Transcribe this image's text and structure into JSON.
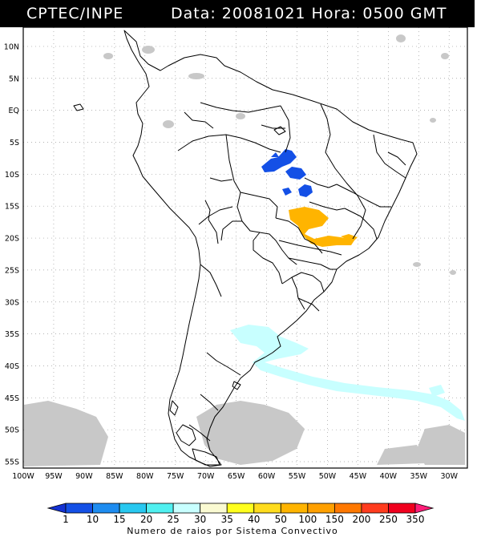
{
  "header": {
    "title": "CPTEC/INPE",
    "datetime": "Data: 20081021  Hora: 0500 GMT"
  },
  "map": {
    "lat_labels": [
      "10N",
      "5N",
      "EQ",
      "5S",
      "10S",
      "15S",
      "20S",
      "25S",
      "30S",
      "35S",
      "40S",
      "45S",
      "50S",
      "55S"
    ],
    "lon_labels": [
      "100W",
      "95W",
      "90W",
      "85W",
      "80W",
      "75W",
      "70W",
      "65W",
      "60W",
      "55W",
      "50W",
      "45W",
      "40W",
      "35W",
      "30W"
    ],
    "extent": {
      "lon_min": -100,
      "lon_max": -27,
      "lat_min": -56,
      "lat_max": 13
    },
    "grid": "dotted"
  },
  "colorbar": {
    "values": [
      "1",
      "10",
      "15",
      "20",
      "25",
      "30",
      "35",
      "40",
      "50",
      "100",
      "150",
      "200",
      "250",
      "350"
    ],
    "colors": [
      "#1432d2",
      "#1450e6",
      "#1e8cf0",
      "#28c8f0",
      "#50f0f0",
      "#c8ffff",
      "#fafad2",
      "#ffff1e",
      "#ffdc1e",
      "#ffb400",
      "#ffa000",
      "#ff7800",
      "#ff3c1e",
      "#f0001e",
      "#ff1e78"
    ],
    "caption": "Numero de raios por Sistema Convectivo"
  }
}
